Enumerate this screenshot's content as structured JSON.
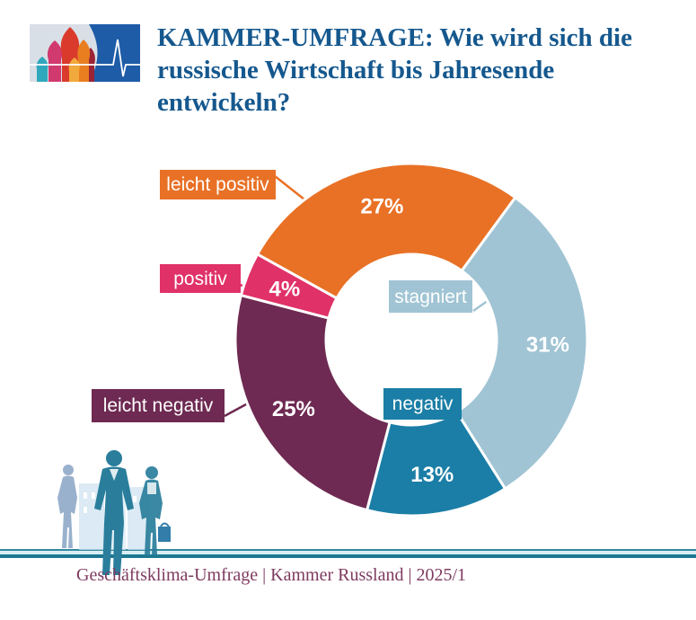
{
  "page": {
    "background": "#FFFFFF"
  },
  "header": {
    "logo": {
      "name": "kammer-russland-logo",
      "panel_blue": "#1E5CA8",
      "panel_gray": "#D9DFE6",
      "ekg_line_color": "#FFFFFF",
      "dome_colors": [
        "#2FA7BC",
        "#D13A6E",
        "#DA3A2C",
        "#E87E20",
        "#F2A93B",
        "#9B2335"
      ]
    },
    "title_lines": [
      "KAMMER-UMFRAGE: Wie wird sich die",
      "russische Wirtschaft bis Jahresende",
      "entwickeln?"
    ],
    "title_color": "#15588E"
  },
  "chart_data": {
    "type": "pie",
    "subtype": "donut",
    "title": "KAMMER-UMFRAGE: Wie wird sich die russische Wirtschaft bis Jahresende entwickeln?",
    "value_unit": "%",
    "start_angle_deg": -61,
    "hole_ratio": 0.48,
    "grid": false,
    "legend_position": "callout-boxes",
    "categories": [
      "leicht positiv",
      "stagniert",
      "negativ",
      "leicht negativ",
      "positiv"
    ],
    "values": [
      27,
      31,
      13,
      25,
      4
    ],
    "slices": [
      {
        "label": "leicht positiv",
        "value": 27,
        "pct_label": "27%",
        "color": "#E87126"
      },
      {
        "label": "stagniert",
        "value": 31,
        "pct_label": "31%",
        "color": "#A0C4D4"
      },
      {
        "label": "negativ",
        "value": 13,
        "pct_label": "13%",
        "color": "#1B7EA6"
      },
      {
        "label": "leicht negativ",
        "value": 25,
        "pct_label": "25%",
        "color": "#6E2A52"
      },
      {
        "label": "positiv",
        "value": 4,
        "pct_label": "4%",
        "color": "#E03169"
      }
    ]
  },
  "decor": {
    "person_teal": "#2A7E9C",
    "person_light": "#8FA9C7",
    "building_light": "#CFE4F1",
    "building_lighter": "#DDECF6",
    "bag_blue": "#2273A3"
  },
  "footer": {
    "source_line": "Geschäftsklima-Umfrage | Kammer Russland | 2025/1",
    "text_color": "#7E3A5F",
    "rule_colors": [
      "#35889E",
      "#D8EEF4",
      "#1C7890"
    ]
  }
}
